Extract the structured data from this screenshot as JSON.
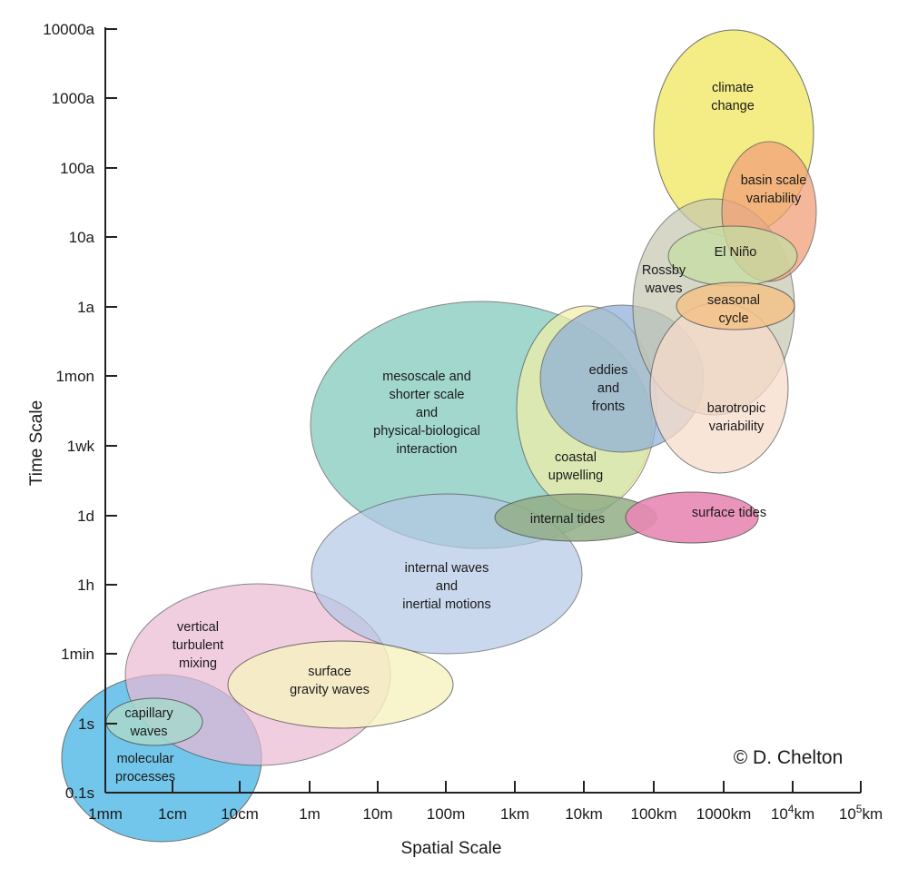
{
  "diagram": {
    "x_axis": {
      "title": "Spatial Scale",
      "ticks": [
        "1mm",
        "1cm",
        "10cm",
        "1m",
        "10m",
        "100m",
        "1km",
        "10km",
        "100km",
        "1000km",
        "10^4km",
        "10^5km"
      ]
    },
    "y_axis": {
      "title": "Time Scale",
      "ticks": [
        "0.1s",
        "1s",
        "1min",
        "1h",
        "1d",
        "1wk",
        "1mon",
        "1a",
        "10a",
        "100a",
        "1000a",
        "10000a"
      ]
    },
    "credit": "© D. Chelton",
    "regions": [
      {
        "id": "molecular-processes",
        "lines": [
          "molecular",
          "processes"
        ],
        "color": "#5bbde8"
      },
      {
        "id": "vertical-turbulent-mixing",
        "lines": [
          "vertical",
          "turbulent",
          "mixing"
        ],
        "color": "#ecb8d4"
      },
      {
        "id": "mesoscale",
        "lines": [
          "mesoscale and",
          "shorter scale",
          "and",
          "physical-biological",
          "interaction"
        ],
        "color": "#7fc8bc"
      },
      {
        "id": "internal-waves",
        "lines": [
          "internal waves",
          "and",
          "inertial motions"
        ],
        "color": "#b4c8e6"
      },
      {
        "id": "surface-gravity-waves",
        "lines": [
          "surface",
          "gravity waves"
        ],
        "color": "#f7f2c2"
      },
      {
        "id": "capillary-waves",
        "lines": [
          "capillary",
          "waves"
        ],
        "color": "#a8d8cc"
      },
      {
        "id": "coastal-upwelling",
        "lines": [
          "coastal",
          "upwelling"
        ],
        "color": "#f3efa8"
      },
      {
        "id": "eddies-and-fronts",
        "lines": [
          "eddies",
          "and",
          "fronts"
        ],
        "color": "#8eaed8"
      },
      {
        "id": "internal-tides",
        "lines": [
          "internal tides"
        ],
        "color": "#93ae88"
      },
      {
        "id": "surface-tides",
        "lines": [
          "surface tides"
        ],
        "color": "#e889b4"
      },
      {
        "id": "climate-change",
        "lines": [
          "climate",
          "change"
        ],
        "color": "#f3ea70"
      },
      {
        "id": "rossby-waves",
        "lines": [
          "Rossby",
          "waves"
        ],
        "color": "#c6c7b0"
      },
      {
        "id": "barotropic-variability",
        "lines": [
          "barotropic",
          "variability"
        ],
        "color": "#f8dccb"
      },
      {
        "id": "basin-scale-variability",
        "lines": [
          "basin scale",
          "variability"
        ],
        "color": "#f2a079"
      },
      {
        "id": "el-nino",
        "lines": [
          "El Niño"
        ],
        "color": "#c6dea2"
      },
      {
        "id": "seasonal-cycle",
        "lines": [
          "seasonal",
          "cycle"
        ],
        "color": "#f4c289"
      }
    ]
  }
}
